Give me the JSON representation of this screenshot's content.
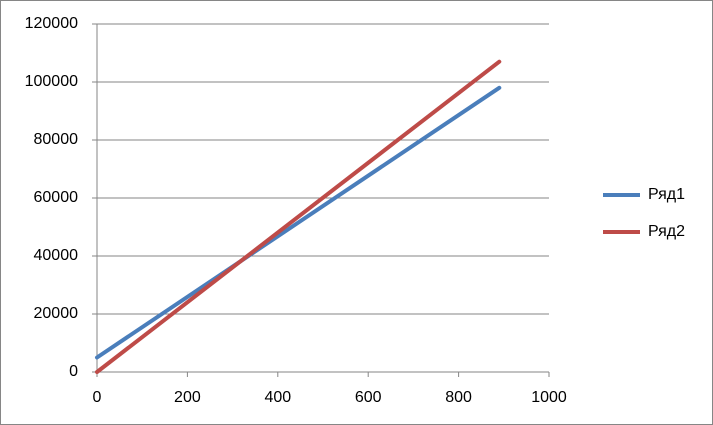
{
  "chart_data": {
    "type": "line",
    "x": [
      0,
      890
    ],
    "series": [
      {
        "name": "Ряд1",
        "color": "#4a7ebb",
        "values": [
          5000,
          98000
        ]
      },
      {
        "name": "Ряд2",
        "color": "#be4b48",
        "values": [
          0,
          107000
        ]
      }
    ],
    "xlim": [
      0,
      1000
    ],
    "xticks": [
      0,
      200,
      400,
      600,
      800,
      1000
    ],
    "ylim": [
      0,
      120000
    ],
    "yticks": [
      0,
      20000,
      40000,
      60000,
      80000,
      100000,
      120000
    ],
    "grid": true,
    "legend": "right"
  }
}
